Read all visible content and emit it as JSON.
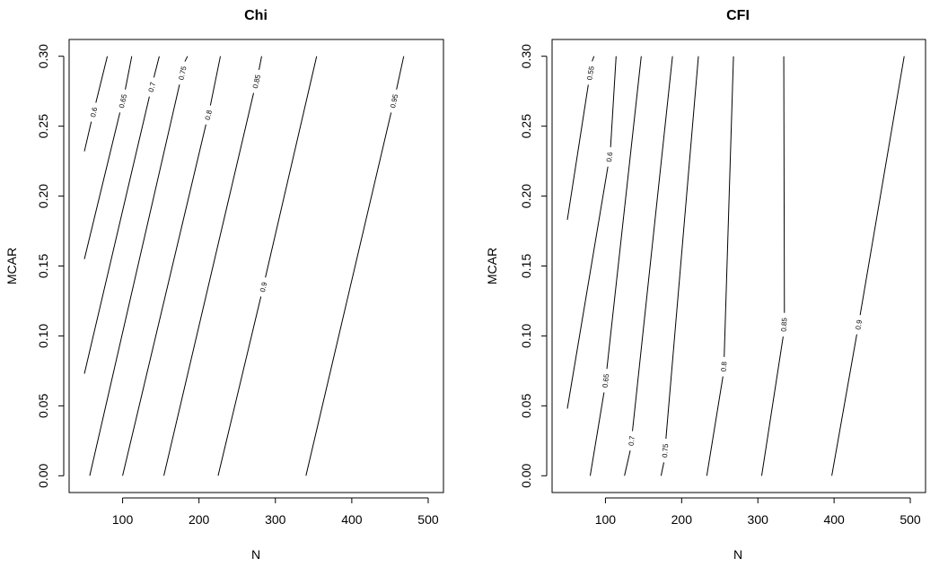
{
  "chart_data": [
    {
      "type": "contour",
      "title": "Chi",
      "xlabel": "N",
      "ylabel": "MCAR",
      "xlim": [
        30,
        520
      ],
      "ylim": [
        -0.012,
        0.312
      ],
      "x_ticks": [
        100,
        200,
        300,
        400,
        500
      ],
      "y_ticks": [
        0.0,
        0.05,
        0.1,
        0.15,
        0.2,
        0.25,
        0.3
      ],
      "x_tick_labels": [
        "100",
        "200",
        "300",
        "400",
        "500"
      ],
      "y_tick_labels": [
        "0.00",
        "0.05",
        "0.10",
        "0.15",
        "0.20",
        "0.25",
        "0.30"
      ],
      "contours": [
        {
          "level": "0.6",
          "points": [
            [
              50,
              0.232
            ],
            [
              80,
              0.3
            ]
          ],
          "label_at": [
            62,
            0.26
          ]
        },
        {
          "level": "0.65",
          "points": [
            [
              50,
              0.155
            ],
            [
              112,
              0.3
            ]
          ],
          "label_at": [
            100,
            0.268
          ]
        },
        {
          "level": "0.7",
          "points": [
            [
              50,
              0.073
            ],
            [
              148,
              0.3
            ]
          ],
          "label_at": [
            138,
            0.278
          ]
        },
        {
          "level": "0.75",
          "points": [
            [
              57,
              0.0
            ],
            [
              185,
              0.3
            ]
          ],
          "label_at": [
            178,
            0.288
          ]
        },
        {
          "level": "0.8",
          "points": [
            [
              100,
              0.0
            ],
            [
              228,
              0.3
            ]
          ],
          "label_at": [
            212,
            0.258
          ]
        },
        {
          "level": "0.85",
          "points": [
            [
              154,
              0.0
            ],
            [
              282,
              0.3
            ]
          ],
          "label_at": [
            275,
            0.282
          ]
        },
        {
          "level": "0.9",
          "points": [
            [
              225,
              0.0
            ],
            [
              354,
              0.3
            ]
          ],
          "label_at": [
            284,
            0.135
          ]
        },
        {
          "level": "0.95",
          "points": [
            [
              340,
              0.0
            ],
            [
              468,
              0.3
            ]
          ],
          "label_at": [
            455,
            0.268
          ]
        }
      ]
    },
    {
      "type": "contour",
      "title": "CFI",
      "xlabel": "N",
      "ylabel": "MCAR",
      "xlim": [
        30,
        520
      ],
      "ylim": [
        -0.012,
        0.312
      ],
      "x_ticks": [
        100,
        200,
        300,
        400,
        500
      ],
      "y_ticks": [
        0.0,
        0.05,
        0.1,
        0.15,
        0.2,
        0.25,
        0.3
      ],
      "x_tick_labels": [
        "100",
        "200",
        "300",
        "400",
        "500"
      ],
      "y_tick_labels": [
        "0.00",
        "0.05",
        "0.10",
        "0.15",
        "0.20",
        "0.25",
        "0.30"
      ],
      "contours": [
        {
          "level": "0.55",
          "points": [
            [
              50,
              0.183
            ],
            [
              85,
              0.3
            ]
          ],
          "label_at": [
            80,
            0.288
          ]
        },
        {
          "level": "0.6",
          "points": [
            [
              50,
              0.048
            ],
            [
              114,
              0.3
            ]
          ],
          "label_at": [
            105,
            0.228
          ]
        },
        {
          "level": "0.65",
          "points": [
            [
              80,
              0.0
            ],
            [
              147,
              0.3
            ]
          ],
          "label_at": [
            100,
            0.068
          ]
        },
        {
          "level": "0.7",
          "points": [
            [
              125,
              0.0
            ],
            [
              188,
              0.3
            ]
          ],
          "label_at": [
            134,
            0.025
          ]
        },
        {
          "level": "0.75",
          "points": [
            [
              173,
              0.0
            ],
            [
              222,
              0.3
            ]
          ],
          "label_at": [
            178,
            0.018
          ]
        },
        {
          "level": "0.8",
          "points": [
            [
              233,
              0.0
            ],
            [
              268,
              0.3
            ]
          ],
          "label_at": [
            255,
            0.078
          ]
        },
        {
          "level": "0.85",
          "points": [
            [
              305,
              0.0
            ],
            [
              334,
              0.3
            ]
          ],
          "label_at": [
            334,
            0.108
          ]
        },
        {
          "level": "0.9",
          "points": [
            [
              397,
              0.0
            ],
            [
              492,
              0.3
            ]
          ],
          "label_at": [
            432,
            0.108
          ]
        }
      ]
    }
  ]
}
